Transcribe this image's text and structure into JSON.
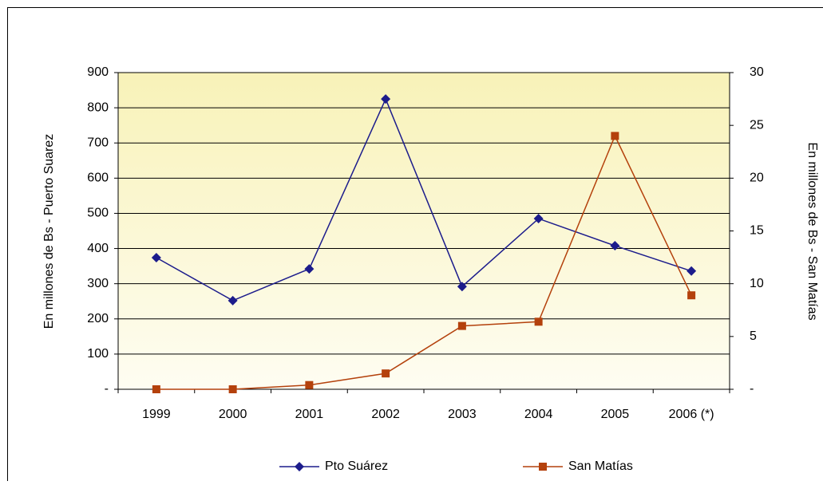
{
  "chart_data": {
    "type": "line",
    "categories": [
      "1999",
      "2000",
      "2001",
      "2002",
      "2003",
      "2004",
      "2005",
      "2006 (*)"
    ],
    "series": [
      {
        "name": "Pto Suárez",
        "color": "#1c1c8c",
        "marker": "diamond",
        "values": [
          374,
          252,
          342,
          825,
          292,
          485,
          408,
          336
        ]
      },
      {
        "name": "San Matías",
        "color": "#b4410c",
        "marker": "square",
        "axis": "y2",
        "values": [
          0,
          0,
          0.4,
          1.5,
          6.0,
          6.4,
          24.0,
          8.9
        ]
      }
    ],
    "ylabel": "En millones de Bs - Puerto Suarez",
    "y2label": "En millones de Bs - San Matías",
    "ylim": [
      0,
      900
    ],
    "yticks": [
      {
        "value": 0,
        "label": "-"
      },
      100,
      200,
      300,
      400,
      500,
      600,
      700,
      800,
      900
    ],
    "y2lim": [
      0,
      30
    ],
    "y2ticks": [
      {
        "value": 0,
        "label": "-"
      },
      5,
      10,
      15,
      20,
      25,
      30
    ],
    "grid": true,
    "legend": "bottom"
  }
}
